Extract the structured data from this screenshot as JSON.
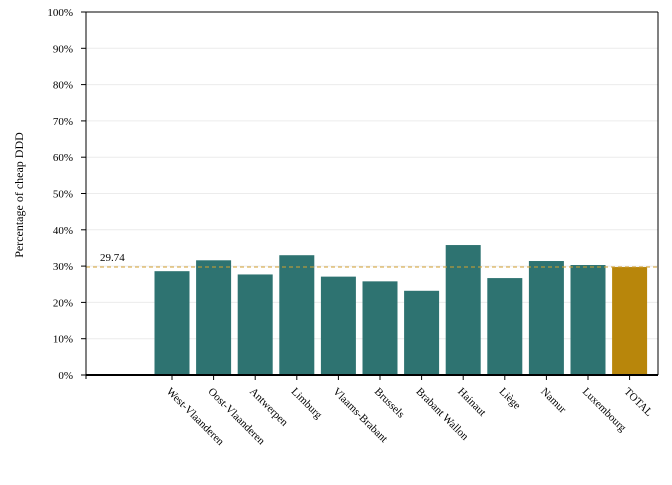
{
  "chart_data": {
    "type": "bar",
    "ylabel": "Percentage of cheap DDD",
    "ylim": [
      0,
      100
    ],
    "yticks": [
      "0%",
      "10%",
      "20%",
      "30%",
      "40%",
      "50%",
      "60%",
      "70%",
      "80%",
      "90%",
      "100%"
    ],
    "categories": [
      "West-Vlaanderen",
      "Oost-Vlaanderen",
      "Antwerpen",
      "Limburg",
      "Vlaams-Brabant",
      "Brussels",
      "Brabant Wallon",
      "Hainaut",
      "Liège",
      "Namur",
      "Luxembourg",
      "TOTAL"
    ],
    "values": [
      28.6,
      31.6,
      27.7,
      33.0,
      27.1,
      25.8,
      23.2,
      35.8,
      26.7,
      31.4,
      30.3,
      29.74
    ],
    "bar_colors": [
      "#2e7371",
      "#2e7371",
      "#2e7371",
      "#2e7371",
      "#2e7371",
      "#2e7371",
      "#2e7371",
      "#2e7371",
      "#2e7371",
      "#2e7371",
      "#2e7371",
      "#b8860b"
    ],
    "reference_line": {
      "value": 29.74,
      "label": "29.74",
      "color": "#d4a030"
    },
    "grid": true,
    "legend": "none"
  }
}
